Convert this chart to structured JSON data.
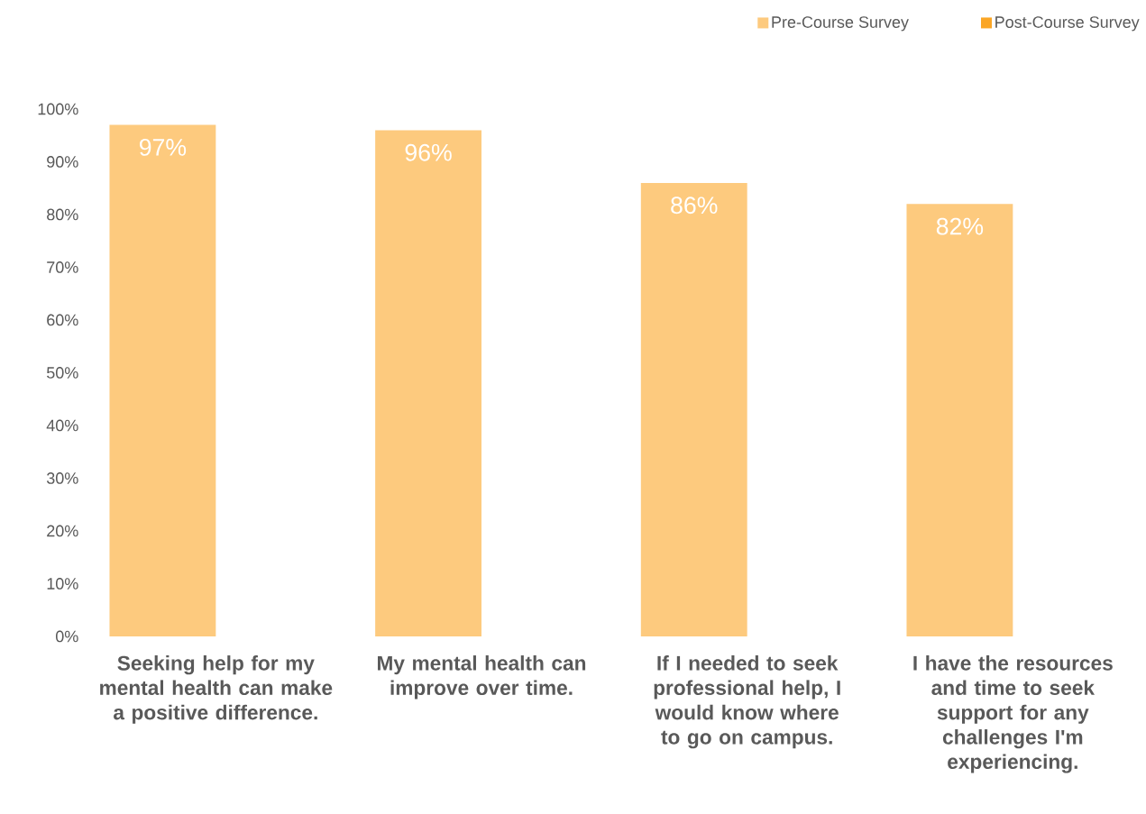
{
  "chart_data": {
    "type": "bar",
    "categories": [
      "Seeking help for my mental health can make a positive difference.",
      "My mental health can improve over time.",
      "If I needed to seek professional help, I would know where to go on campus.",
      "I have the resources and time to seek support for any challenges I'm experiencing."
    ],
    "series": [
      {
        "name": "Pre-Course Survey",
        "color": "#fdca7e",
        "values": [
          97,
          96,
          86,
          82
        ],
        "value_labels": [
          "97%",
          "96%",
          "86%",
          "82%"
        ]
      },
      {
        "name": "Post-Course Survey",
        "color": "#fba625",
        "values": [
          null,
          null,
          null,
          null
        ]
      }
    ],
    "ylim": [
      0,
      100
    ],
    "yticks": [
      {
        "value": 0,
        "label": "0%"
      },
      {
        "value": 10,
        "label": "10%"
      },
      {
        "value": 20,
        "label": "20%"
      },
      {
        "value": 30,
        "label": "30%"
      },
      {
        "value": 40,
        "label": "40%"
      },
      {
        "value": 50,
        "label": "50%"
      },
      {
        "value": 60,
        "label": "60%"
      },
      {
        "value": 70,
        "label": "70%"
      },
      {
        "value": 80,
        "label": "80%"
      },
      {
        "value": 90,
        "label": "90%"
      },
      {
        "value": 100,
        "label": "100%"
      }
    ],
    "grid": false,
    "legend": "top right"
  }
}
